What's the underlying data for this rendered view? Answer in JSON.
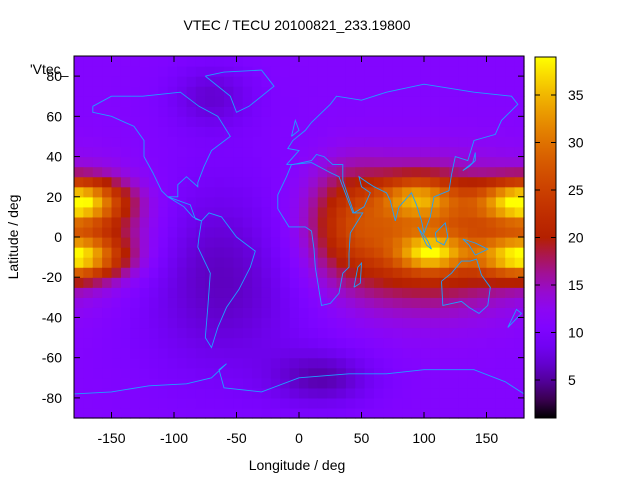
{
  "chart_data": {
    "type": "heatmap",
    "title": "VTEC / TECU 20100821_233.19800",
    "xlabel": "Longitude / deg",
    "ylabel": "Latitude / deg",
    "key_label": "'Vtec_",
    "xlim": [
      -180,
      180
    ],
    "ylim": [
      -90,
      90
    ],
    "x_ticks": [
      -150,
      -100,
      -50,
      0,
      50,
      100,
      150
    ],
    "y_ticks": [
      -80,
      -60,
      -40,
      -20,
      0,
      20,
      40,
      60,
      80
    ],
    "colorbar": {
      "range": [
        1,
        39
      ],
      "ticks": [
        5,
        10,
        15,
        20,
        25,
        30,
        35
      ],
      "palette": "black-blue-violet-red-orange-yellow"
    },
    "coastline_color": "#1ea0ff",
    "grid_step_deg": {
      "lon": 7.5,
      "lat": 5
    },
    "features": [
      {
        "lon": 100,
        "lat": 0,
        "lon_sigma": 55,
        "lat_sigma": 22,
        "value": 16
      },
      {
        "lon": 95,
        "lat": 20,
        "lon_sigma": 22,
        "lat_sigma": 7,
        "value": 13
      },
      {
        "lon": 105,
        "lat": -8,
        "lon_sigma": 18,
        "lat_sigma": 6,
        "value": 13
      },
      {
        "lon": 40,
        "lat": 10,
        "lon_sigma": 22,
        "lat_sigma": 18,
        "value": 7
      },
      {
        "lon": -180,
        "lat": 18,
        "lon_sigma": 25,
        "lat_sigma": 7,
        "value": 22
      },
      {
        "lon": -180,
        "lat": -10,
        "lon_sigma": 25,
        "lat_sigma": 7,
        "value": 20
      },
      {
        "lon": -160,
        "lat": 5,
        "lon_sigma": 30,
        "lat_sigma": 18,
        "value": 7
      },
      {
        "lon": -60,
        "lat": -20,
        "lon_sigma": 50,
        "lat_sigma": 35,
        "value": -5
      },
      {
        "lon": -70,
        "lat": 70,
        "lon_sigma": 25,
        "lat_sigma": 12,
        "value": -4
      },
      {
        "lon": 20,
        "lat": -70,
        "lon_sigma": 30,
        "lat_sigma": 10,
        "value": -5
      }
    ],
    "background_value": 11
  }
}
